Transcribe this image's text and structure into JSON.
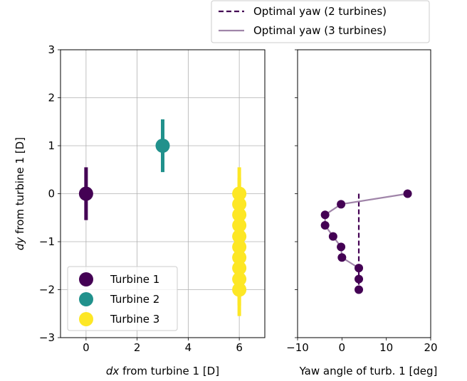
{
  "chart_data": [
    {
      "type": "scatter",
      "xlabel": "dx from turbine 1 [D]",
      "ylabel": "dy from turbine 1 [D]",
      "xlim": [
        -1,
        7
      ],
      "ylim": [
        -3,
        3
      ],
      "xticks": [
        0,
        2,
        4,
        6
      ],
      "yticks": [
        -3,
        -2,
        -1,
        0,
        1,
        2,
        3
      ],
      "grid": true,
      "legend_position": "lower-left",
      "series": [
        {
          "name": "Turbine 1",
          "color": "#440154",
          "points": [
            {
              "x": 0,
              "y": 0
            }
          ],
          "bar_half_length": 0.55
        },
        {
          "name": "Turbine 2",
          "color": "#21918c",
          "points": [
            {
              "x": 3,
              "y": 1
            }
          ],
          "bar_half_length": 0.55
        },
        {
          "name": "Turbine 3",
          "color": "#fde725",
          "points": [
            {
              "x": 6,
              "y": 0
            },
            {
              "x": 6,
              "y": -0.22
            },
            {
              "x": 6,
              "y": -0.44
            },
            {
              "x": 6,
              "y": -0.66
            },
            {
              "x": 6,
              "y": -0.89
            },
            {
              "x": 6,
              "y": -1.11
            },
            {
              "x": 6,
              "y": -1.33
            },
            {
              "x": 6,
              "y": -1.55
            },
            {
              "x": 6,
              "y": -1.78
            },
            {
              "x": 6,
              "y": -2.0
            }
          ],
          "bar_half_length": 0.55
        }
      ]
    },
    {
      "type": "line",
      "xlabel": "Yaw angle of turb. 1 [deg]",
      "xlim": [
        -10,
        20
      ],
      "ylim": [
        -3,
        3
      ],
      "xticks": [
        -10,
        0,
        10,
        20
      ],
      "grid": false,
      "legend_position": "top (outside)",
      "series": [
        {
          "name": "Optimal yaw (2 turbines)",
          "color": "#440154",
          "style": "dashed",
          "points": [
            {
              "x": 3.8,
              "y": 0
            },
            {
              "x": 3.8,
              "y": -2.0
            }
          ]
        },
        {
          "name": "Optimal yaw (3 turbines)",
          "color": "#a085a9",
          "style": "solid",
          "points": [
            {
              "x": 14.8,
              "y": 0
            },
            {
              "x": -0.2,
              "y": -0.22
            },
            {
              "x": -3.8,
              "y": -0.44
            },
            {
              "x": -3.8,
              "y": -0.66
            },
            {
              "x": -2.0,
              "y": -0.89
            },
            {
              "x": -0.2,
              "y": -1.11
            },
            {
              "x": 0,
              "y": -1.33
            },
            {
              "x": 3.8,
              "y": -1.55
            }
          ]
        },
        {
          "name": "",
          "color": "#440154",
          "style": "markers",
          "points": [
            {
              "x": 14.8,
              "y": 0
            },
            {
              "x": -0.2,
              "y": -0.22
            },
            {
              "x": -3.8,
              "y": -0.44
            },
            {
              "x": -3.8,
              "y": -0.66
            },
            {
              "x": -2.0,
              "y": -0.89
            },
            {
              "x": -0.2,
              "y": -1.11
            },
            {
              "x": 0,
              "y": -1.33
            },
            {
              "x": 3.8,
              "y": -1.55
            },
            {
              "x": 3.8,
              "y": -1.78
            },
            {
              "x": 3.8,
              "y": -2.0
            }
          ]
        }
      ]
    }
  ]
}
